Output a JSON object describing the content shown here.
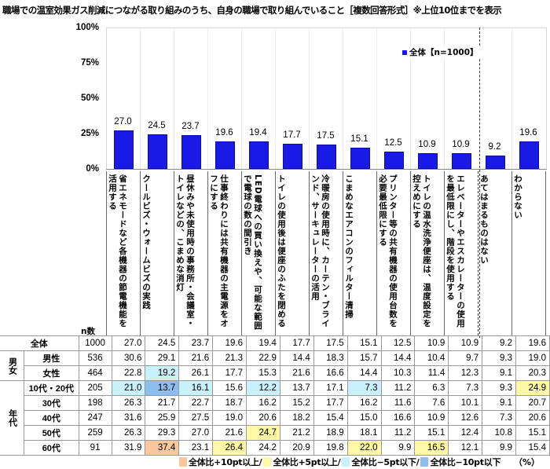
{
  "title": "職場での温室効果ガス削減につながる取り組みのうち、自身の職場で取り組んでいること［複数回答形式］※上位10位までを表示",
  "colors": {
    "bar": "#1a1ae6",
    "plus10": "#f8c79c",
    "plus5": "#fdf7a6",
    "minus5": "#c9f1fb",
    "minus10": "#8ebdf0"
  },
  "chart_data": {
    "type": "bar",
    "title": "職場での温室効果ガス削減につながる取り組みのうち、自身の職場で取り組んでいること［複数回答形式］※上位10位までを表示",
    "legend": "全体【n=1000】",
    "ylim": [
      0,
      100
    ],
    "yticks": [
      "100%",
      "75%",
      "50%",
      "25%",
      "0%"
    ],
    "categories": [
      "省エネモードなど各機器の節電機能を活用する",
      "クールビズ・ウォームビズの実践",
      "昼休みや未使用時の事務所・会議室・トイレなどの、こまめな消灯",
      "仕事終わりには共有機器の主電源をオフにする",
      "LED電球への買い換えや、可能な範囲で電球の数の間引き",
      "トイレの使用後は便座のふたを閉める",
      "冷暖房の使用時に、カーテン・ブラインド、サーキュレーターの活用",
      "こまめなエアコンのフィルター清掃",
      "プリンター等の共有機器の使用台数を必要最低限にする",
      "トイレの温水洗浄便座は、温度設定を控えめにする",
      "エレベーターやエスカレーターの使用を最低限にし、階段を使用する",
      "あてはまるものはない",
      "わからない"
    ],
    "series": [
      {
        "name": "全体【n=1000】",
        "values": [
          27.0,
          24.5,
          23.7,
          19.6,
          19.4,
          17.7,
          17.5,
          15.1,
          12.5,
          10.9,
          10.9,
          9.2,
          19.6
        ]
      }
    ],
    "table": {
      "n_header": "n数",
      "rows": [
        {
          "group": "",
          "label": "全体",
          "n": "1000",
          "values": [
            "27.0",
            "24.5",
            "23.7",
            "19.6",
            "19.4",
            "17.7",
            "17.5",
            "15.1",
            "12.5",
            "10.9",
            "10.9",
            "9.2",
            "19.6"
          ]
        },
        {
          "group": "男女",
          "label": "男性",
          "n": "536",
          "values": [
            "30.6",
            "29.1",
            "21.6",
            "21.3",
            "22.9",
            "14.4",
            "18.3",
            "15.7",
            "14.4",
            "10.4",
            "9.7",
            "9.3",
            "19.0"
          ]
        },
        {
          "group": "男女",
          "label": "女性",
          "n": "464",
          "values": [
            "22.8",
            "19.2",
            "26.1",
            "17.7",
            "15.3",
            "21.6",
            "16.6",
            "14.4",
            "10.3",
            "11.4",
            "12.3",
            "9.1",
            "20.3"
          ]
        },
        {
          "group": "年代",
          "label": "10代・20代",
          "n": "205",
          "values": [
            "21.0",
            "13.7",
            "16.1",
            "15.6",
            "12.2",
            "13.7",
            "17.1",
            "7.3",
            "11.2",
            "6.3",
            "7.3",
            "9.3",
            "24.9"
          ]
        },
        {
          "group": "年代",
          "label": "30代",
          "n": "198",
          "values": [
            "26.3",
            "21.7",
            "22.7",
            "18.7",
            "16.2",
            "15.2",
            "17.7",
            "16.2",
            "11.6",
            "7.6",
            "10.1",
            "9.1",
            "20.7"
          ]
        },
        {
          "group": "年代",
          "label": "40代",
          "n": "247",
          "values": [
            "31.6",
            "25.9",
            "27.5",
            "19.0",
            "20.6",
            "18.2",
            "15.4",
            "15.0",
            "16.6",
            "10.9",
            "12.6",
            "7.3",
            "20.6"
          ]
        },
        {
          "group": "年代",
          "label": "50代",
          "n": "259",
          "values": [
            "26.3",
            "29.3",
            "27.0",
            "21.6",
            "24.7",
            "21.2",
            "18.9",
            "18.1",
            "11.2",
            "15.1",
            "12.4",
            "10.8",
            "15.1"
          ]
        },
        {
          "group": "年代",
          "label": "60代",
          "n": "91",
          "values": [
            "31.9",
            "37.4",
            "23.1",
            "26.4",
            "24.2",
            "20.9",
            "19.8",
            "22.0",
            "9.9",
            "16.5",
            "12.1",
            "9.9",
            "15.4"
          ]
        }
      ]
    }
  },
  "table_labels": {
    "n_header": "n数",
    "group_gender": "男女",
    "group_age": "年代"
  },
  "footer": {
    "legend": [
      {
        "label": "全体比+10pt以上/",
        "class": "c-p10"
      },
      {
        "label": "全体比+5pt以上/",
        "class": "c-p5"
      },
      {
        "label": "全体比−5pt以下/",
        "class": "c-m5"
      },
      {
        "label": "全体比−10pt以下",
        "class": "c-m10"
      }
    ],
    "unit": "（%）"
  }
}
